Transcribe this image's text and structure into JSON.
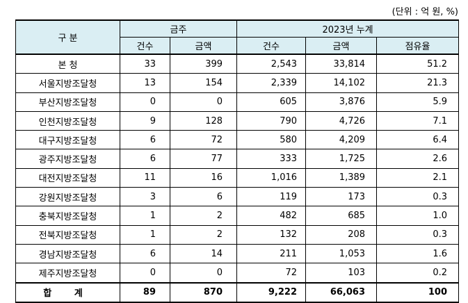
{
  "unit_note": "(단위 : 억 원, %)",
  "headers": {
    "category": "구 분",
    "this_week": "금주",
    "ytd": "2023년 누계",
    "count": "건수",
    "amount": "금액",
    "share": "점유율"
  },
  "rows": [
    {
      "name": "본  청",
      "wk_count": "33",
      "wk_amount": "399",
      "ytd_count": "2,543",
      "ytd_amount": "33,814",
      "share": "51.2"
    },
    {
      "name": "서울지방조달청",
      "wk_count": "13",
      "wk_amount": "154",
      "ytd_count": "2,339",
      "ytd_amount": "14,102",
      "share": "21.3"
    },
    {
      "name": "부산지방조달청",
      "wk_count": "0",
      "wk_amount": "0",
      "ytd_count": "605",
      "ytd_amount": "3,876",
      "share": "5.9"
    },
    {
      "name": "인천지방조달청",
      "wk_count": "9",
      "wk_amount": "128",
      "ytd_count": "790",
      "ytd_amount": "4,726",
      "share": "7.1"
    },
    {
      "name": "대구지방조달청",
      "wk_count": "6",
      "wk_amount": "72",
      "ytd_count": "580",
      "ytd_amount": "4,209",
      "share": "6.4"
    },
    {
      "name": "광주지방조달청",
      "wk_count": "6",
      "wk_amount": "77",
      "ytd_count": "333",
      "ytd_amount": "1,725",
      "share": "2.6"
    },
    {
      "name": "대전지방조달청",
      "wk_count": "11",
      "wk_amount": "16",
      "ytd_count": "1,016",
      "ytd_amount": "1,389",
      "share": "2.1"
    },
    {
      "name": "강원지방조달청",
      "wk_count": "3",
      "wk_amount": "6",
      "ytd_count": "119",
      "ytd_amount": "173",
      "share": "0.3"
    },
    {
      "name": "충북지방조달청",
      "wk_count": "1",
      "wk_amount": "2",
      "ytd_count": "482",
      "ytd_amount": "685",
      "share": "1.0"
    },
    {
      "name": "전북지방조달청",
      "wk_count": "1",
      "wk_amount": "2",
      "ytd_count": "132",
      "ytd_amount": "208",
      "share": "0.3"
    },
    {
      "name": "경남지방조달청",
      "wk_count": "6",
      "wk_amount": "14",
      "ytd_count": "211",
      "ytd_amount": "1,053",
      "share": "1.6"
    },
    {
      "name": "제주지방조달청",
      "wk_count": "0",
      "wk_amount": "0",
      "ytd_count": "72",
      "ytd_amount": "103",
      "share": "0.2"
    }
  ],
  "total": {
    "name": "합 계",
    "wk_count": "89",
    "wk_amount": "870",
    "ytd_count": "9,222",
    "ytd_amount": "66,063",
    "share": "100"
  },
  "colors": {
    "header_bg": "#daeef3",
    "border": "#000000"
  }
}
